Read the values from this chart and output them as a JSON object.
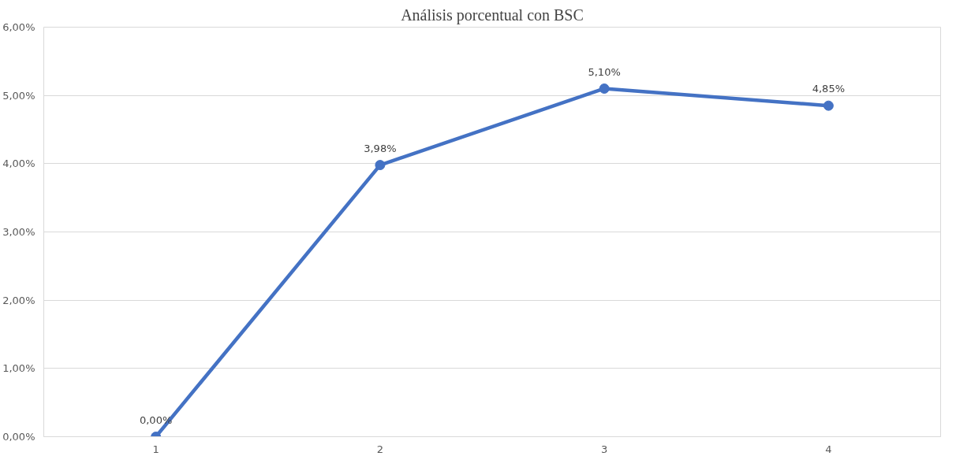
{
  "chart_data": {
    "type": "line",
    "title": "Análisis porcentual con BSC",
    "categories": [
      "1",
      "2",
      "3",
      "4"
    ],
    "series": [
      {
        "color": "#4472c4",
        "values": [
          0.0,
          3.98,
          5.1,
          4.85
        ],
        "value_labels": [
          "0,00%",
          "3,98%",
          "5,10%",
          "4,85%"
        ]
      }
    ],
    "ylim": [
      0,
      6
    ],
    "yticks": [
      {
        "value": 0,
        "label": "0,00%"
      },
      {
        "value": 1,
        "label": "1,00%"
      },
      {
        "value": 2,
        "label": "2,00%"
      },
      {
        "value": 3,
        "label": "3,00%"
      },
      {
        "value": 4,
        "label": "4,00%"
      },
      {
        "value": 5,
        "label": "5,00%"
      },
      {
        "value": 6,
        "label": "6,00%"
      }
    ],
    "grid": "y",
    "marker": "circle",
    "line_style": "solid"
  }
}
